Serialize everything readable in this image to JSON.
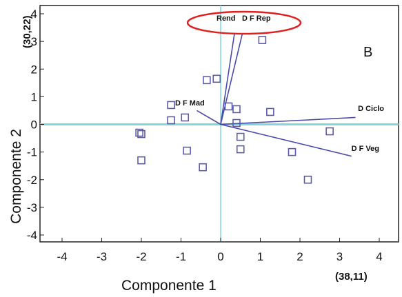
{
  "chart_data": {
    "type": "scatter",
    "xlabel": "Componente 1",
    "ylabel": "Componente 2",
    "xlim": [
      -4,
      4
    ],
    "ylim": [
      -4,
      4
    ],
    "xticks": [
      "-4",
      "-3",
      "-2",
      "-1",
      "0",
      "1",
      "2",
      "3",
      "4"
    ],
    "yticks": [
      "4",
      "3",
      "2",
      "1",
      "0",
      "-1",
      "-2",
      "-3",
      "-4"
    ],
    "panel_label": "B",
    "corner_labels": {
      "y_axis": "(30,22)",
      "x_axis": "(38,11)"
    },
    "points": [
      {
        "x": 1.05,
        "y": 3.05
      },
      {
        "x": -0.35,
        "y": 1.6
      },
      {
        "x": -0.1,
        "y": 1.65
      },
      {
        "x": 0.2,
        "y": 0.65
      },
      {
        "x": 0.4,
        "y": 0.55
      },
      {
        "x": 1.25,
        "y": 0.45
      },
      {
        "x": -1.25,
        "y": 0.7
      },
      {
        "x": -0.9,
        "y": 0.25
      },
      {
        "x": -1.25,
        "y": 0.15
      },
      {
        "x": 0.4,
        "y": 0.05
      },
      {
        "x": -2.05,
        "y": -0.3
      },
      {
        "x": -2.0,
        "y": -0.35
      },
      {
        "x": 0.5,
        "y": -0.45
      },
      {
        "x": 2.75,
        "y": -0.25
      },
      {
        "x": -0.85,
        "y": -0.95
      },
      {
        "x": 0.5,
        "y": -0.9
      },
      {
        "x": 1.8,
        "y": -1.0
      },
      {
        "x": -2.0,
        "y": -1.3
      },
      {
        "x": -0.45,
        "y": -1.55
      },
      {
        "x": 2.2,
        "y": -2.0
      }
    ],
    "vectors": [
      {
        "name": "Rend",
        "x": 0.35,
        "y": 3.3
      },
      {
        "name": "D F Rep",
        "x": 0.55,
        "y": 3.3
      },
      {
        "name": "D F Mad",
        "x": -0.6,
        "y": 0.5
      },
      {
        "name": "D Ciclo",
        "x": 3.4,
        "y": 0.25
      },
      {
        "name": "D F Veg",
        "x": 3.3,
        "y": -1.15
      }
    ],
    "reference_lines": {
      "x": 0,
      "y": 0
    },
    "highlight": "Rend D F Rep",
    "colors": {
      "points": "#5a5ab4",
      "vectors": "#4a4aa8",
      "reference": "#7fd6dc",
      "highlight": "#e02020"
    }
  }
}
